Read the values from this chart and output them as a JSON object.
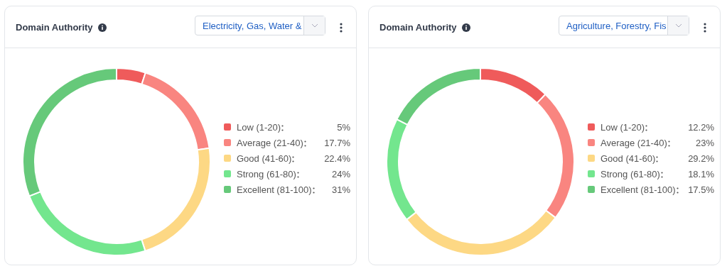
{
  "chart_data": [
    {
      "type": "donut",
      "title": "Domain Authority",
      "subtitle": "Electricity, Gas, Water &",
      "categories": [
        "Low (1-20)",
        "Average (21-40)",
        "Good (41-60)",
        "Strong (61-80)",
        "Excellent (81-100)"
      ],
      "values": [
        5,
        17.7,
        22.4,
        24,
        31
      ],
      "value_labels": [
        "5%",
        "17.7%",
        "22.4%",
        "24%",
        "31%"
      ],
      "colors": [
        "#ef5b5b",
        "#f98580",
        "#fdd884",
        "#73e68e",
        "#66c97a"
      ],
      "legend": "right"
    },
    {
      "type": "donut",
      "title": "Domain Authority",
      "subtitle": "Agriculture, Forestry, Fis",
      "categories": [
        "Low (1-20)",
        "Average (21-40)",
        "Good (41-60)",
        "Strong (61-80)",
        "Excellent (81-100)"
      ],
      "values": [
        12.2,
        23,
        29.2,
        18.1,
        17.5
      ],
      "value_labels": [
        "12.2%",
        "23%",
        "29.2%",
        "18.1%",
        "17.5%"
      ],
      "colors": [
        "#ef5b5b",
        "#f98580",
        "#fdd884",
        "#73e68e",
        "#66c97a"
      ],
      "legend": "right"
    }
  ]
}
